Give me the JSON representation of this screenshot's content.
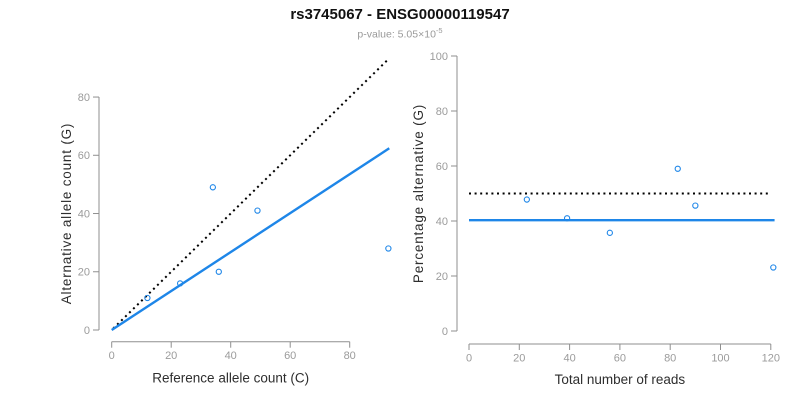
{
  "header": {
    "title": "rs3745067 - ENSG00000119547",
    "subtitle_base": "p-value: 5.05×10",
    "subtitle_exponent": "-5"
  },
  "colors": {
    "accent_blue": "#1E86E8",
    "dotted_black": "#000000",
    "axis_line_gray": "#8f8f8f",
    "tick_label_gray": "#9b9b9b",
    "axis_title_dark": "#2e2e2e",
    "title_black": "#111111",
    "subtitle_gray": "#9a9a9a"
  },
  "chart_data": [
    {
      "type": "scatter",
      "xlabel": "Reference allele count (C)",
      "ylabel": "Alternative allele count (G)",
      "xlim": [
        0,
        95
      ],
      "ylim": [
        0,
        95
      ],
      "x_ticks": [
        0,
        20,
        40,
        60,
        80
      ],
      "y_ticks": [
        0,
        20,
        40,
        60,
        80
      ],
      "grid": false,
      "legend": "none",
      "points": [
        {
          "x": 12,
          "y": 11
        },
        {
          "x": 23,
          "y": 16
        },
        {
          "x": 34,
          "y": 49
        },
        {
          "x": 36,
          "y": 20
        },
        {
          "x": 49,
          "y": 41
        },
        {
          "x": 93,
          "y": 28
        }
      ],
      "lines": [
        {
          "name": "identity-line",
          "style": "dotted",
          "color": "#000000",
          "from": [
            0.5,
            0.5
          ],
          "to": [
            93,
            93
          ]
        },
        {
          "name": "fit-line",
          "style": "solid",
          "color": "#1E86E8",
          "from": [
            0,
            0
          ],
          "to": [
            93.3,
            62.4
          ]
        }
      ]
    },
    {
      "type": "scatter",
      "xlabel": "Total number of reads",
      "ylabel": "Percentage alternative (G)",
      "xlim": [
        0,
        122
      ],
      "ylim": [
        0,
        100
      ],
      "x_ticks": [
        0,
        20,
        40,
        60,
        80,
        100,
        120
      ],
      "y_ticks": [
        0,
        20,
        40,
        60,
        80,
        100
      ],
      "grid": false,
      "legend": "none",
      "points": [
        {
          "x": 23,
          "y": 47.8
        },
        {
          "x": 39,
          "y": 41.0
        },
        {
          "x": 56,
          "y": 35.7
        },
        {
          "x": 83,
          "y": 59.0
        },
        {
          "x": 90,
          "y": 45.6
        },
        {
          "x": 121,
          "y": 23.1
        }
      ],
      "lines": [
        {
          "name": "fifty-percent-line",
          "style": "dotted",
          "color": "#000000",
          "from": [
            0,
            50
          ],
          "to": [
            120,
            50
          ]
        },
        {
          "name": "mean-percentage-line",
          "style": "solid",
          "color": "#1E86E8",
          "from": [
            0,
            40.3
          ],
          "to": [
            121.5,
            40.3
          ]
        }
      ]
    }
  ]
}
